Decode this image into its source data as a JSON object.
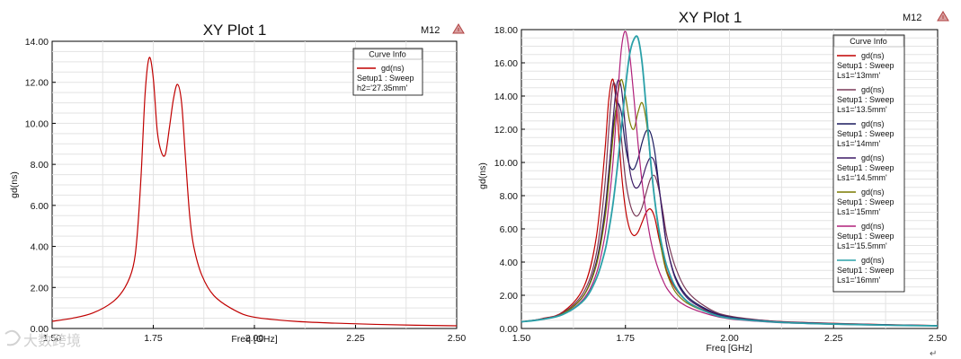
{
  "watermark": "大数跨境",
  "corner_glyph": "↵",
  "chart_data": [
    {
      "type": "line",
      "title": "XY Plot 1",
      "marker_label": "M12",
      "marker_icon": "triangle-marker-icon",
      "xlabel": "Freq [GHz]",
      "ylabel": "gd(ns)",
      "xlim": [
        1.5,
        2.5
      ],
      "ylim": [
        0,
        14
      ],
      "xticks": [
        "1.50",
        "1.75",
        "2.00",
        "2.25",
        "2.50"
      ],
      "yticks": [
        "0.00",
        "2.00",
        "4.00",
        "6.00",
        "8.00",
        "10.00",
        "12.00",
        "14.00"
      ],
      "grid": true,
      "legend_title": "Curve Info",
      "legend_position": "top-right",
      "series": [
        {
          "name": "gd(ns)",
          "lines": [
            "gd(ns)",
            "Setup1 : Sweep",
            "h2='27.35mm'"
          ],
          "color": "#c00000",
          "x": [
            1.5,
            1.55,
            1.6,
            1.65,
            1.68,
            1.7,
            1.71,
            1.72,
            1.73,
            1.74,
            1.75,
            1.76,
            1.77,
            1.78,
            1.79,
            1.8,
            1.81,
            1.82,
            1.83,
            1.84,
            1.85,
            1.87,
            1.9,
            1.95,
            2.0,
            2.1,
            2.2,
            2.3,
            2.4,
            2.5
          ],
          "y": [
            0.35,
            0.5,
            0.75,
            1.3,
            2.0,
            3.0,
            4.5,
            7.5,
            11.5,
            13.2,
            12.2,
            9.6,
            8.6,
            8.5,
            9.8,
            11.2,
            11.9,
            11.0,
            8.2,
            5.5,
            4.0,
            2.6,
            1.6,
            0.9,
            0.55,
            0.35,
            0.26,
            0.2,
            0.16,
            0.13
          ]
        }
      ]
    },
    {
      "type": "line",
      "title": "XY Plot 1",
      "marker_label": "M12",
      "marker_icon": "triangle-marker-icon",
      "xlabel": "Freq [GHz]",
      "ylabel": "gd(ns)",
      "xlim": [
        1.5,
        2.5
      ],
      "ylim": [
        0,
        18
      ],
      "xticks": [
        "1.50",
        "1.75",
        "2.00",
        "2.25",
        "2.50"
      ],
      "yticks": [
        "0.00",
        "2.00",
        "4.00",
        "6.00",
        "8.00",
        "10.00",
        "12.00",
        "14.00",
        "16.00",
        "18.00"
      ],
      "grid": true,
      "legend_title": "Curve Info",
      "legend_position": "top-right",
      "series": [
        {
          "name": "Ls1='13mm'",
          "lines": [
            "gd(ns)",
            "Setup1 : Sweep",
            "Ls1='13mm'"
          ],
          "color": "#c00000",
          "x": [
            1.5,
            1.55,
            1.6,
            1.65,
            1.68,
            1.7,
            1.71,
            1.72,
            1.73,
            1.74,
            1.75,
            1.76,
            1.77,
            1.78,
            1.79,
            1.8,
            1.81,
            1.82,
            1.83,
            1.84,
            1.85,
            1.87,
            1.9,
            1.95,
            2.0,
            2.1,
            2.2,
            2.3,
            2.4,
            2.5
          ],
          "y": [
            0.4,
            0.6,
            1.0,
            2.5,
            5.5,
            10.5,
            13.8,
            15.0,
            13.0,
            9.5,
            7.2,
            6.0,
            5.6,
            5.8,
            6.4,
            7.0,
            7.2,
            6.7,
            5.5,
            4.4,
            3.4,
            2.4,
            1.6,
            1.0,
            0.7,
            0.45,
            0.35,
            0.28,
            0.22,
            0.18
          ]
        },
        {
          "name": "Ls1='13.5mm'",
          "lines": [
            "gd(ns)",
            "Setup1 : Sweep",
            "Ls1='13.5mm'"
          ],
          "color": "#7a3a58",
          "x": [
            1.5,
            1.55,
            1.6,
            1.65,
            1.68,
            1.7,
            1.71,
            1.72,
            1.73,
            1.74,
            1.75,
            1.76,
            1.77,
            1.78,
            1.79,
            1.8,
            1.81,
            1.82,
            1.83,
            1.84,
            1.85,
            1.87,
            1.9,
            1.95,
            2.0,
            2.1,
            2.2,
            2.3,
            2.4,
            2.5
          ],
          "y": [
            0.4,
            0.58,
            0.95,
            2.2,
            4.5,
            8.5,
            12.0,
            14.7,
            14.0,
            11.5,
            9.0,
            7.6,
            6.9,
            6.8,
            7.3,
            8.2,
            9.0,
            9.2,
            8.4,
            7.0,
            5.5,
            3.7,
            2.2,
            1.2,
            0.75,
            0.45,
            0.34,
            0.27,
            0.22,
            0.18
          ]
        },
        {
          "name": "Ls1='14mm'",
          "lines": [
            "gd(ns)",
            "Setup1 : Sweep",
            "Ls1='14mm'"
          ],
          "color": "#1a1a5e",
          "x": [
            1.5,
            1.55,
            1.6,
            1.65,
            1.68,
            1.7,
            1.71,
            1.72,
            1.73,
            1.74,
            1.75,
            1.76,
            1.77,
            1.78,
            1.79,
            1.8,
            1.81,
            1.82,
            1.83,
            1.84,
            1.85,
            1.87,
            1.9,
            1.95,
            2.0,
            2.1,
            2.2,
            2.3,
            2.4,
            2.5
          ],
          "y": [
            0.4,
            0.56,
            0.9,
            2.0,
            4.0,
            7.0,
            9.5,
            12.0,
            13.5,
            13.0,
            11.0,
            9.8,
            9.6,
            10.2,
            11.2,
            11.9,
            11.8,
            10.7,
            8.7,
            6.6,
            4.9,
            3.1,
            1.9,
            1.1,
            0.7,
            0.43,
            0.33,
            0.26,
            0.21,
            0.17
          ]
        },
        {
          "name": "Ls1='14.5mm'",
          "lines": [
            "gd(ns)",
            "Setup1 : Sweep",
            "Ls1='14.5mm'"
          ],
          "color": "#3d1a66",
          "x": [
            1.5,
            1.55,
            1.6,
            1.65,
            1.68,
            1.7,
            1.71,
            1.72,
            1.73,
            1.74,
            1.75,
            1.76,
            1.77,
            1.78,
            1.79,
            1.8,
            1.81,
            1.82,
            1.83,
            1.84,
            1.85,
            1.87,
            1.9,
            1.95,
            2.0,
            2.1,
            2.2,
            2.3,
            2.4,
            2.5
          ],
          "y": [
            0.4,
            0.55,
            0.9,
            2.0,
            3.9,
            6.8,
            9.3,
            12.5,
            14.8,
            14.5,
            12.0,
            9.6,
            8.6,
            8.5,
            9.0,
            9.8,
            10.3,
            10.0,
            8.6,
            6.7,
            4.9,
            3.0,
            1.8,
            1.05,
            0.68,
            0.42,
            0.32,
            0.25,
            0.2,
            0.17
          ]
        },
        {
          "name": "Ls1='15mm'",
          "lines": [
            "gd(ns)",
            "Setup1 : Sweep",
            "Ls1='15mm'"
          ],
          "color": "#7a7a00",
          "x": [
            1.5,
            1.55,
            1.6,
            1.65,
            1.68,
            1.7,
            1.71,
            1.72,
            1.73,
            1.74,
            1.75,
            1.76,
            1.77,
            1.78,
            1.79,
            1.8,
            1.81,
            1.82,
            1.83,
            1.84,
            1.85,
            1.87,
            1.9,
            1.95,
            2.0,
            2.1,
            2.2,
            2.3,
            2.4,
            2.5
          ],
          "y": [
            0.4,
            0.55,
            0.9,
            2.0,
            3.8,
            6.5,
            8.8,
            11.5,
            13.8,
            15.0,
            14.0,
            12.5,
            12.0,
            13.0,
            13.6,
            12.5,
            10.2,
            7.8,
            5.8,
            4.3,
            3.3,
            2.2,
            1.5,
            0.95,
            0.62,
            0.4,
            0.3,
            0.24,
            0.2,
            0.16
          ]
        },
        {
          "name": "Ls1='15.5mm'",
          "lines": [
            "gd(ns)",
            "Setup1 : Sweep",
            "Ls1='15.5mm'"
          ],
          "color": "#b0207a",
          "x": [
            1.5,
            1.55,
            1.6,
            1.65,
            1.68,
            1.7,
            1.71,
            1.72,
            1.73,
            1.74,
            1.75,
            1.76,
            1.77,
            1.78,
            1.79,
            1.8,
            1.81,
            1.82,
            1.83,
            1.84,
            1.85,
            1.87,
            1.9,
            1.95,
            2.0,
            2.1,
            2.2,
            2.3,
            2.4,
            2.5
          ],
          "y": [
            0.4,
            0.55,
            0.85,
            1.8,
            3.3,
            5.5,
            7.5,
            10.0,
            13.5,
            16.8,
            17.9,
            16.5,
            14.0,
            11.2,
            8.8,
            6.9,
            5.4,
            4.3,
            3.5,
            2.9,
            2.4,
            1.8,
            1.3,
            0.85,
            0.58,
            0.38,
            0.29,
            0.23,
            0.19,
            0.16
          ]
        },
        {
          "name": "Ls1='16mm'",
          "lines": [
            "gd(ns)",
            "Setup1 : Sweep",
            "Ls1='16mm'"
          ],
          "color": "#2aa0a8",
          "x": [
            1.5,
            1.55,
            1.6,
            1.65,
            1.68,
            1.7,
            1.71,
            1.72,
            1.73,
            1.74,
            1.75,
            1.76,
            1.77,
            1.78,
            1.79,
            1.8,
            1.81,
            1.82,
            1.83,
            1.84,
            1.85,
            1.87,
            1.9,
            1.95,
            2.0,
            2.1,
            2.2,
            2.3,
            2.4,
            2.5
          ],
          "y": [
            0.4,
            0.55,
            0.85,
            1.7,
            3.0,
            4.6,
            5.9,
            7.5,
            9.6,
            12.0,
            14.5,
            16.5,
            17.4,
            17.5,
            16.0,
            13.2,
            10.2,
            7.8,
            6.0,
            4.7,
            3.7,
            2.5,
            1.6,
            0.95,
            0.62,
            0.4,
            0.3,
            0.24,
            0.19,
            0.16
          ]
        }
      ]
    }
  ]
}
